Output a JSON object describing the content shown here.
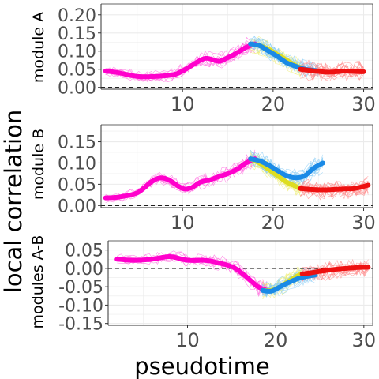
{
  "figure": {
    "shared_ylabel": "local correlation",
    "shared_xlabel": "pseudotime",
    "series_colors": {
      "magenta": "#ff00cc",
      "yellow": "#dddd22",
      "blue": "#1a8ae6",
      "red": "#ee1111",
      "thin_magenta": "#ff66dd",
      "thin_yellow": "#eeee77",
      "thin_blue": "#88ccf5",
      "thin_red": "#ff8888"
    }
  },
  "chart_data": [
    {
      "type": "line",
      "ylabel": "module A",
      "xlim": [
        1,
        31
      ],
      "ylim": [
        -0.005,
        0.23
      ],
      "xticks": [
        10,
        20,
        30
      ],
      "yticks": [
        0.0,
        0.05,
        0.1,
        0.15,
        0.2
      ],
      "ytick_labels": [
        "0.00",
        "0.05",
        "0.10",
        "0.15",
        "0.20"
      ],
      "hline": 0.0,
      "grid": true,
      "series": [
        {
          "color": "magenta",
          "x": [
            1.5,
            3,
            5,
            7,
            9,
            10,
            11,
            12.5,
            14,
            15,
            16,
            17,
            18
          ],
          "y": [
            0.045,
            0.04,
            0.03,
            0.03,
            0.035,
            0.045,
            0.06,
            0.08,
            0.072,
            0.082,
            0.095,
            0.11,
            0.12
          ]
        },
        {
          "color": "yellow",
          "x": [
            17.5,
            18.5,
            19.5,
            20.5,
            21.5,
            22.5,
            23
          ],
          "y": [
            0.12,
            0.115,
            0.105,
            0.09,
            0.075,
            0.06,
            0.055
          ]
        },
        {
          "color": "blue",
          "x": [
            17.5,
            18.5,
            19.5,
            20.5,
            21.5,
            22.5,
            23.5,
            24.5,
            25
          ],
          "y": [
            0.12,
            0.115,
            0.1,
            0.085,
            0.068,
            0.058,
            0.05,
            0.047,
            0.045
          ]
        },
        {
          "color": "red",
          "x": [
            23,
            24,
            25,
            26,
            27,
            28,
            29,
            30
          ],
          "y": [
            0.05,
            0.047,
            0.044,
            0.042,
            0.043,
            0.045,
            0.044,
            0.043
          ]
        }
      ]
    },
    {
      "type": "line",
      "ylabel": "module B",
      "xlim": [
        1,
        31
      ],
      "ylim": [
        -0.005,
        0.19
      ],
      "xticks": [
        10,
        20,
        30
      ],
      "yticks": [
        0.0,
        0.05,
        0.1,
        0.15
      ],
      "ytick_labels": [
        "0.00",
        "0.05",
        "0.10",
        "0.15"
      ],
      "hline": 0.0,
      "grid": true,
      "series": [
        {
          "color": "magenta",
          "x": [
            1.5,
            3,
            5,
            6.5,
            7.5,
            8.5,
            10,
            11,
            12,
            13,
            14,
            15,
            16,
            17,
            18
          ],
          "y": [
            0.018,
            0.02,
            0.03,
            0.055,
            0.065,
            0.06,
            0.04,
            0.042,
            0.055,
            0.06,
            0.068,
            0.075,
            0.085,
            0.1,
            0.11
          ]
        },
        {
          "color": "yellow",
          "x": [
            17.5,
            18.5,
            19.5,
            20.5,
            21.5,
            22.5,
            23
          ],
          "y": [
            0.11,
            0.1,
            0.085,
            0.07,
            0.055,
            0.045,
            0.04
          ]
        },
        {
          "color": "blue",
          "x": [
            17.5,
            18.5,
            19.5,
            20.5,
            21.5,
            22.5,
            23.5,
            24.5,
            25.5
          ],
          "y": [
            0.11,
            0.105,
            0.095,
            0.082,
            0.07,
            0.065,
            0.07,
            0.088,
            0.1
          ]
        },
        {
          "color": "red",
          "x": [
            23,
            24,
            25,
            26,
            27,
            28,
            29,
            30,
            30.5
          ],
          "y": [
            0.04,
            0.038,
            0.037,
            0.037,
            0.038,
            0.039,
            0.04,
            0.045,
            0.048
          ]
        }
      ]
    },
    {
      "type": "line",
      "ylabel": "modules A-B",
      "xlabel": "pseudotime",
      "xlim": [
        1,
        31
      ],
      "ylim": [
        -0.155,
        0.075
      ],
      "xticks": [
        10,
        20,
        30
      ],
      "yticks": [
        -0.15,
        -0.1,
        -0.05,
        0.0,
        0.05
      ],
      "ytick_labels": [
        "-0.15",
        "-0.10",
        "-0.05",
        "0.00",
        "0.05"
      ],
      "hline": 0.0,
      "grid": true,
      "series": [
        {
          "color": "magenta",
          "x": [
            2,
            4,
            6,
            8,
            10,
            12,
            13,
            15,
            16,
            17,
            18,
            19
          ],
          "y": [
            0.025,
            0.022,
            0.025,
            0.032,
            0.022,
            0.022,
            0.018,
            0.005,
            -0.01,
            -0.03,
            -0.05,
            -0.06
          ]
        },
        {
          "color": "yellow",
          "x": [
            18.5,
            19.5,
            20.5,
            21.5,
            22.5,
            23
          ],
          "y": [
            -0.06,
            -0.06,
            -0.05,
            -0.035,
            -0.02,
            -0.015
          ]
        },
        {
          "color": "blue",
          "x": [
            18.5,
            19.5,
            20.5,
            21.5,
            22.5,
            23.5,
            24.5
          ],
          "y": [
            -0.06,
            -0.062,
            -0.05,
            -0.038,
            -0.028,
            -0.022,
            -0.018
          ]
        },
        {
          "color": "red",
          "x": [
            23,
            24,
            25,
            26,
            27,
            28,
            29,
            30,
            30.5
          ],
          "y": [
            -0.015,
            -0.012,
            -0.008,
            -0.005,
            -0.002,
            0.0,
            0.002,
            0.003,
            0.003
          ]
        }
      ]
    }
  ]
}
